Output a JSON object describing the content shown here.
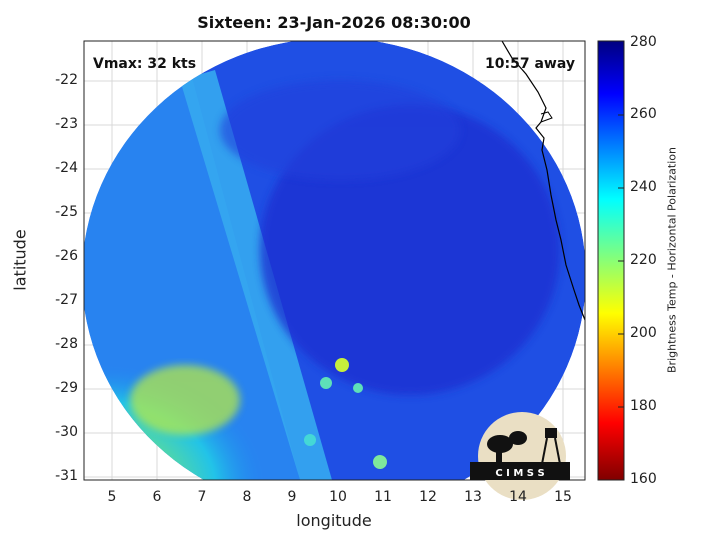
{
  "title": "Sixteen: 23-Jan-2026 08:30:00",
  "vmax_label": "Vmax: 32 kts",
  "time_label": "10:57 away",
  "xlabel": "longitude",
  "ylabel": "latitude",
  "colorbar_label": "Brightness Temp - Horizontal Polarization",
  "logo_text": "C I M S S",
  "x_ticks": [
    "5",
    "6",
    "7",
    "8",
    "9",
    "10",
    "11",
    "12",
    "13",
    "14",
    "15"
  ],
  "y_ticks": [
    "-22",
    "-23",
    "-24",
    "-25",
    "-26",
    "-27",
    "-28",
    "-29",
    "-30",
    "-31"
  ],
  "cb_ticks": [
    "280",
    "260",
    "240",
    "220",
    "200",
    "180",
    "160"
  ],
  "colormap": "jet",
  "colors": {
    "cold_core": "#1f3fd6",
    "swath_edge": "#2a8ef0",
    "warm_sw": "#b9ea3c",
    "coastline": "#000000"
  },
  "map": {
    "lon_range": [
      4.4,
      15.4
    ],
    "lat_range": [
      -31.1,
      -21.3
    ],
    "colorbar_range": [
      160,
      280
    ]
  }
}
